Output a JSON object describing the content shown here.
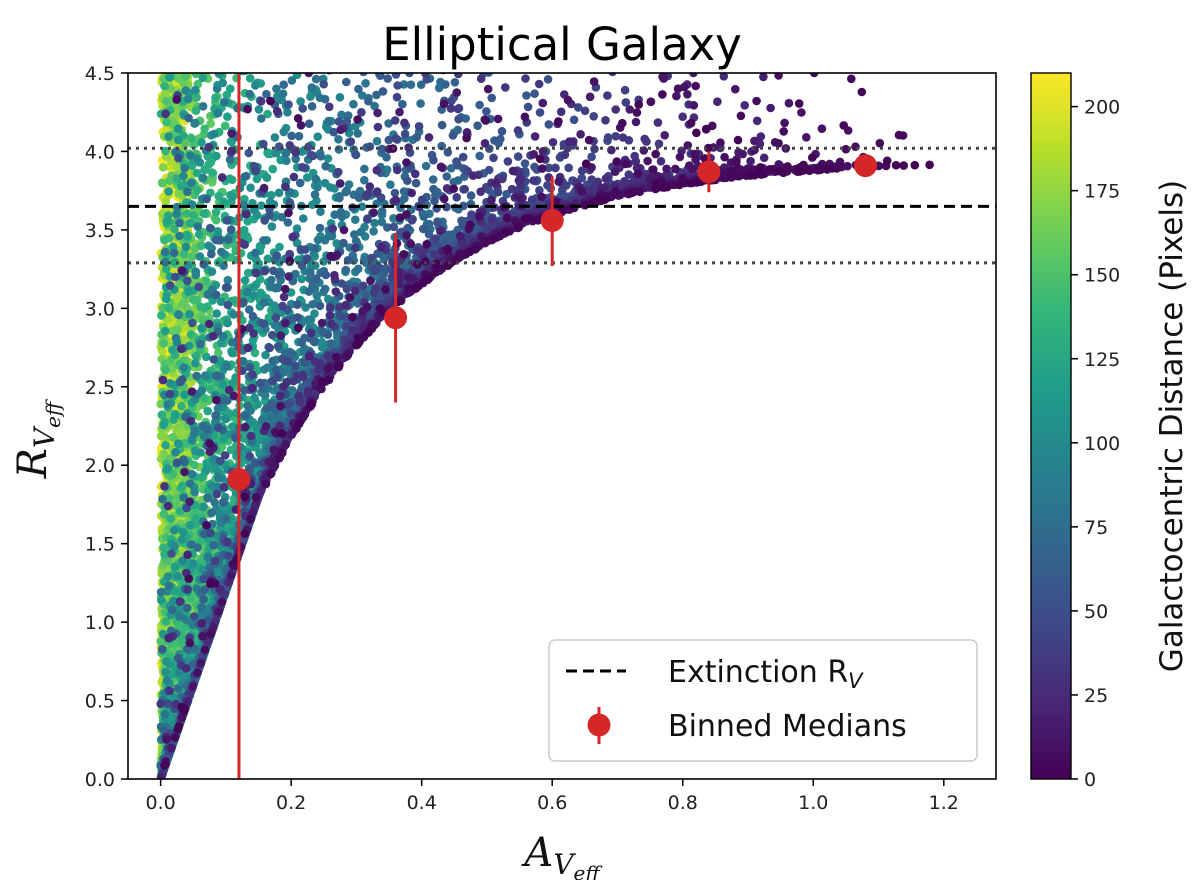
{
  "chart_data": {
    "type": "scatter",
    "title": "Elliptical Galaxy",
    "xlabel": {
      "main": "A",
      "sub": "V",
      "subsub": "eff"
    },
    "ylabel": {
      "main": "R",
      "sub": "V",
      "subsub": "eff"
    },
    "xlim": [
      -0.05,
      1.28
    ],
    "ylim": [
      0.0,
      4.5
    ],
    "xticks": [
      0.0,
      0.2,
      0.4,
      0.6,
      0.8,
      1.0,
      1.2
    ],
    "xtick_labels": [
      "0.0",
      "0.2",
      "0.4",
      "0.6",
      "0.8",
      "1.0",
      "1.2"
    ],
    "yticks": [
      0.0,
      0.5,
      1.0,
      1.5,
      2.0,
      2.5,
      3.0,
      3.5,
      4.0,
      4.5
    ],
    "ytick_labels": [
      "0.0",
      "0.5",
      "1.0",
      "1.5",
      "2.0",
      "2.5",
      "3.0",
      "3.5",
      "4.0",
      "4.5"
    ],
    "extinction_rv": 3.65,
    "rv_bounds": [
      3.29,
      4.02
    ],
    "binned_medians": [
      {
        "x": 0.12,
        "y": 1.91,
        "yerr_low": 1.91,
        "yerr_high": 2.59
      },
      {
        "x": 0.36,
        "y": 2.94,
        "yerr_low": 0.54,
        "yerr_high": 0.54
      },
      {
        "x": 0.6,
        "y": 3.56,
        "yerr_low": 0.29,
        "yerr_high": 0.28
      },
      {
        "x": 0.84,
        "y": 3.87,
        "yerr_low": 0.13,
        "yerr_high": 0.13
      },
      {
        "x": 1.08,
        "y": 3.91,
        "yerr_low": 0.05,
        "yerr_high": 0.05
      }
    ],
    "scatter_description": "Points colored by galactocentric distance; R_Veff rises with A_Veff and saturates near 3.9",
    "colorbar": {
      "label": "Galactocentric Distance (Pixels)",
      "range": [
        0,
        210
      ],
      "ticks": [
        0,
        25,
        50,
        75,
        100,
        125,
        150,
        175,
        200
      ],
      "tick_labels": [
        "0",
        "25",
        "50",
        "75",
        "100",
        "125",
        "150",
        "175",
        "200"
      ],
      "colors": [
        "#440154",
        "#482878",
        "#3e4a89",
        "#31688e",
        "#26828e",
        "#1f9e89",
        "#35b779",
        "#6ece58",
        "#b5de2b",
        "#fde725"
      ]
    },
    "legend": {
      "position": "lower-right",
      "entries": [
        "Extinction R",
        "Binned Medians"
      ],
      "extinction_sub": "V"
    },
    "colors": {
      "median_marker": "#d62728",
      "line": "#000000",
      "dotted": "#444444"
    }
  }
}
